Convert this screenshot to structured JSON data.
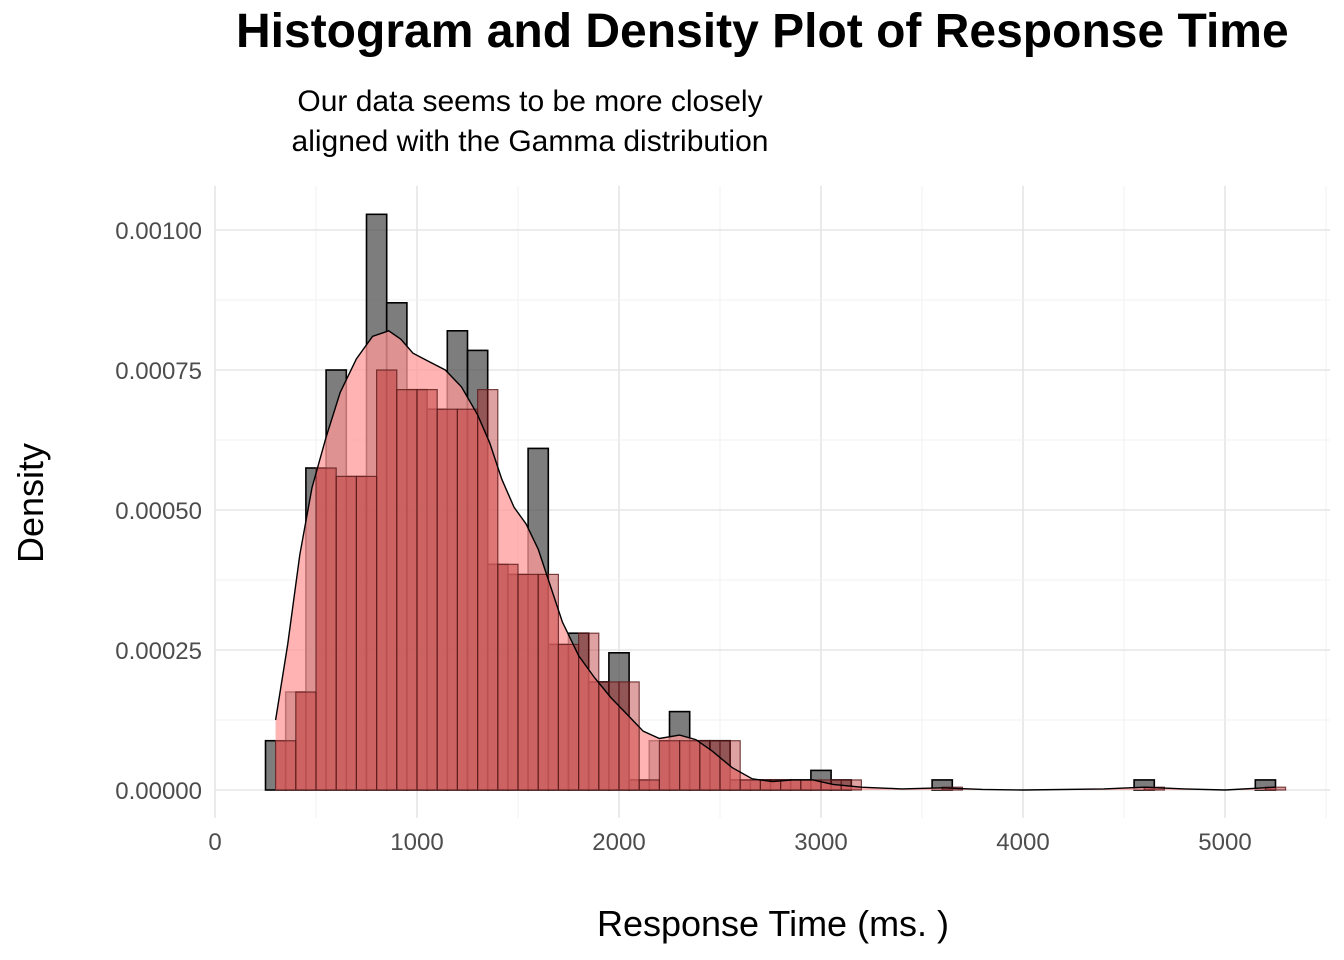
{
  "chart_data": {
    "type": "bar",
    "title": "Histogram and Density Plot of Response Time",
    "subtitle_lines": [
      "Our data seems to be more closely",
      "aligned with the Gamma distribution"
    ],
    "xlabel": "Response Time (ms. )",
    "ylabel": "Density",
    "xlim": [
      0,
      5500
    ],
    "ylim": [
      -5e-05,
      0.00108
    ],
    "x_ticks": [
      0,
      1000,
      2000,
      3000,
      4000,
      5000
    ],
    "x_tick_labels": [
      "0",
      "1000",
      "2000",
      "3000",
      "4000",
      "5000"
    ],
    "y_ticks": [
      0,
      0.00025,
      0.0005,
      0.00075,
      0.001
    ],
    "y_tick_labels": [
      "0.00000",
      "0.00025",
      "0.00050",
      "0.00075",
      "0.00100"
    ],
    "grid": true,
    "histogram_empirical": {
      "color": "#595959",
      "bins": [
        {
          "x0": 250,
          "x1": 350,
          "density": 8.8e-05
        },
        {
          "x0": 350,
          "x1": 450,
          "density": 0.000175
        },
        {
          "x0": 450,
          "x1": 550,
          "density": 0.000575
        },
        {
          "x0": 550,
          "x1": 650,
          "density": 0.00075
        },
        {
          "x0": 650,
          "x1": 750,
          "density": 0.00056
        },
        {
          "x0": 750,
          "x1": 850,
          "density": 0.001028
        },
        {
          "x0": 850,
          "x1": 950,
          "density": 0.00087
        },
        {
          "x0": 950,
          "x1": 1050,
          "density": 0.000715
        },
        {
          "x0": 1050,
          "x1": 1150,
          "density": 0.00068
        },
        {
          "x0": 1150,
          "x1": 1250,
          "density": 0.00082
        },
        {
          "x0": 1250,
          "x1": 1350,
          "density": 0.000785
        },
        {
          "x0": 1350,
          "x1": 1450,
          "density": 0.000403
        },
        {
          "x0": 1450,
          "x1": 1550,
          "density": 0.000385
        },
        {
          "x0": 1550,
          "x1": 1650,
          "density": 0.00061
        },
        {
          "x0": 1650,
          "x1": 1750,
          "density": 0.00026
        },
        {
          "x0": 1750,
          "x1": 1850,
          "density": 0.00028
        },
        {
          "x0": 1850,
          "x1": 1950,
          "density": 0.000193
        },
        {
          "x0": 1950,
          "x1": 2050,
          "density": 0.000245
        },
        {
          "x0": 2050,
          "x1": 2150,
          "density": 1.8e-05
        },
        {
          "x0": 2150,
          "x1": 2250,
          "density": 8.8e-05
        },
        {
          "x0": 2250,
          "x1": 2350,
          "density": 0.00014
        },
        {
          "x0": 2350,
          "x1": 2450,
          "density": 8.8e-05
        },
        {
          "x0": 2450,
          "x1": 2550,
          "density": 8.8e-05
        },
        {
          "x0": 2550,
          "x1": 2650,
          "density": 1.8e-05
        },
        {
          "x0": 2650,
          "x1": 2750,
          "density": 1.8e-05
        },
        {
          "x0": 2750,
          "x1": 2850,
          "density": 1.8e-05
        },
        {
          "x0": 2850,
          "x1": 2950,
          "density": 1.8e-05
        },
        {
          "x0": 2950,
          "x1": 3050,
          "density": 3.5e-05
        },
        {
          "x0": 3050,
          "x1": 3150,
          "density": 1.8e-05
        },
        {
          "x0": 3550,
          "x1": 3650,
          "density": 1.8e-05
        },
        {
          "x0": 4550,
          "x1": 4650,
          "density": 1.8e-05
        },
        {
          "x0": 5150,
          "x1": 5250,
          "density": 1.8e-05
        }
      ]
    },
    "histogram_overlay": {
      "color": "#b22222",
      "bins": [
        {
          "x0": 300,
          "x1": 400,
          "density": 8.8e-05
        },
        {
          "x0": 400,
          "x1": 500,
          "density": 0.000175
        },
        {
          "x0": 500,
          "x1": 600,
          "density": 0.000575
        },
        {
          "x0": 600,
          "x1": 700,
          "density": 0.00056
        },
        {
          "x0": 700,
          "x1": 800,
          "density": 0.00056
        },
        {
          "x0": 800,
          "x1": 900,
          "density": 0.00075
        },
        {
          "x0": 900,
          "x1": 1000,
          "density": 0.000715
        },
        {
          "x0": 1000,
          "x1": 1100,
          "density": 0.000715
        },
        {
          "x0": 1100,
          "x1": 1200,
          "density": 0.00068
        },
        {
          "x0": 1200,
          "x1": 1300,
          "density": 0.00068
        },
        {
          "x0": 1300,
          "x1": 1400,
          "density": 0.000715
        },
        {
          "x0": 1400,
          "x1": 1500,
          "density": 0.000403
        },
        {
          "x0": 1500,
          "x1": 1600,
          "density": 0.000385
        },
        {
          "x0": 1600,
          "x1": 1700,
          "density": 0.000385
        },
        {
          "x0": 1700,
          "x1": 1800,
          "density": 0.00026
        },
        {
          "x0": 1800,
          "x1": 1900,
          "density": 0.00028
        },
        {
          "x0": 1900,
          "x1": 2000,
          "density": 0.000193
        },
        {
          "x0": 2000,
          "x1": 2100,
          "density": 0.000193
        },
        {
          "x0": 2100,
          "x1": 2200,
          "density": 1.8e-05
        },
        {
          "x0": 2200,
          "x1": 2300,
          "density": 8.8e-05
        },
        {
          "x0": 2300,
          "x1": 2400,
          "density": 8.8e-05
        },
        {
          "x0": 2400,
          "x1": 2500,
          "density": 8.8e-05
        },
        {
          "x0": 2500,
          "x1": 2600,
          "density": 8.8e-05
        },
        {
          "x0": 2600,
          "x1": 2700,
          "density": 1.8e-05
        },
        {
          "x0": 2700,
          "x1": 2800,
          "density": 1.8e-05
        },
        {
          "x0": 2800,
          "x1": 2900,
          "density": 1.8e-05
        },
        {
          "x0": 2900,
          "x1": 3000,
          "density": 1.8e-05
        },
        {
          "x0": 3000,
          "x1": 3100,
          "density": 1.8e-05
        },
        {
          "x0": 3100,
          "x1": 3200,
          "density": 1.8e-05
        },
        {
          "x0": 3600,
          "x1": 3700,
          "density": 5e-06
        },
        {
          "x0": 4600,
          "x1": 4700,
          "density": 5e-06
        },
        {
          "x0": 5200,
          "x1": 5300,
          "density": 5e-06
        }
      ]
    },
    "density_curve": {
      "fill": "#ff9999",
      "line": "#000000",
      "points": [
        [
          300,
          0.000125
        ],
        [
          360,
          0.00026
        ],
        [
          420,
          0.00042
        ],
        [
          480,
          0.00054
        ],
        [
          550,
          0.00063
        ],
        [
          620,
          0.00071
        ],
        [
          700,
          0.00077
        ],
        [
          780,
          0.00081
        ],
        [
          860,
          0.00082
        ],
        [
          920,
          0.000805
        ],
        [
          980,
          0.00078
        ],
        [
          1060,
          0.000765
        ],
        [
          1140,
          0.00075
        ],
        [
          1220,
          0.00072
        ],
        [
          1300,
          0.00067
        ],
        [
          1360,
          0.00062
        ],
        [
          1420,
          0.000555
        ],
        [
          1480,
          0.000505
        ],
        [
          1540,
          0.000475
        ],
        [
          1600,
          0.00043
        ],
        [
          1660,
          0.000365
        ],
        [
          1720,
          0.0003
        ],
        [
          1800,
          0.00024
        ],
        [
          1880,
          0.0002
        ],
        [
          1960,
          0.000165
        ],
        [
          2040,
          0.000135
        ],
        [
          2120,
          0.000105
        ],
        [
          2200,
          9.2e-05
        ],
        [
          2300,
          9.8e-05
        ],
        [
          2380,
          9e-05
        ],
        [
          2460,
          7e-05
        ],
        [
          2560,
          4e-05
        ],
        [
          2660,
          2e-05
        ],
        [
          2760,
          1.5e-05
        ],
        [
          2860,
          1.8e-05
        ],
        [
          2960,
          1.8e-05
        ],
        [
          3060,
          1e-05
        ],
        [
          3200,
          5e-06
        ],
        [
          3400,
          2e-06
        ],
        [
          3600,
          4e-06
        ],
        [
          3800,
          1e-06
        ],
        [
          4000,
          0
        ],
        [
          4400,
          2e-06
        ],
        [
          4600,
          5e-06
        ],
        [
          4800,
          2e-06
        ],
        [
          5000,
          0
        ],
        [
          5250,
          5e-06
        ]
      ]
    }
  }
}
